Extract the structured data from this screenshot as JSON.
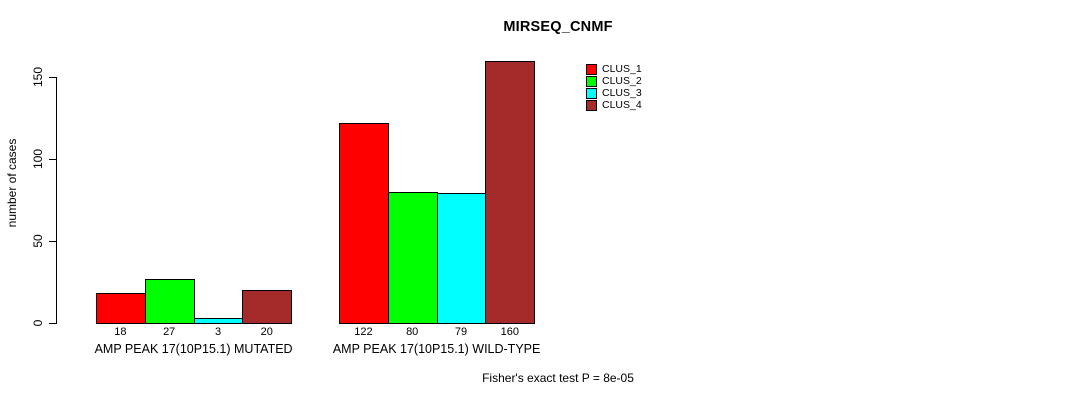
{
  "title": "MIRSEQ_CNMF",
  "footer": {
    "text": "Fisher's exact test P = 8e-05"
  },
  "y_axis": {
    "label": "number of cases",
    "tick_labels": [
      "0",
      "50",
      "100",
      "150"
    ]
  },
  "legend": {
    "position": "top-right",
    "items": [
      {
        "label": "CLUS_1",
        "color": "#FF0000"
      },
      {
        "label": "CLUS_2",
        "color": "#00FF00"
      },
      {
        "label": "CLUS_3",
        "color": "#00FFFF"
      },
      {
        "label": "CLUS_4",
        "color": "#A52A2A"
      }
    ]
  },
  "chart_data": {
    "type": "bar",
    "title": "MIRSEQ_CNMF",
    "xlabel": "",
    "ylabel": "number of cases",
    "ylim": [
      0,
      160
    ],
    "yticks": [
      0,
      50,
      100,
      150
    ],
    "grid": false,
    "legend_position": "top-right",
    "categories": [
      "AMP PEAK 17(10P15.1) MUTATED",
      "AMP PEAK 17(10P15.1) WILD-TYPE"
    ],
    "series": [
      {
        "name": "CLUS_1",
        "color": "#FF0000",
        "values": [
          18,
          122
        ]
      },
      {
        "name": "CLUS_2",
        "color": "#00FF00",
        "values": [
          27,
          80
        ]
      },
      {
        "name": "CLUS_3",
        "color": "#00FFFF",
        "values": [
          3,
          79
        ]
      },
      {
        "name": "CLUS_4",
        "color": "#A52A2A",
        "values": [
          20,
          160
        ]
      }
    ],
    "bar_value_labels": true,
    "annotation": "Fisher's exact test P = 8e-05"
  }
}
